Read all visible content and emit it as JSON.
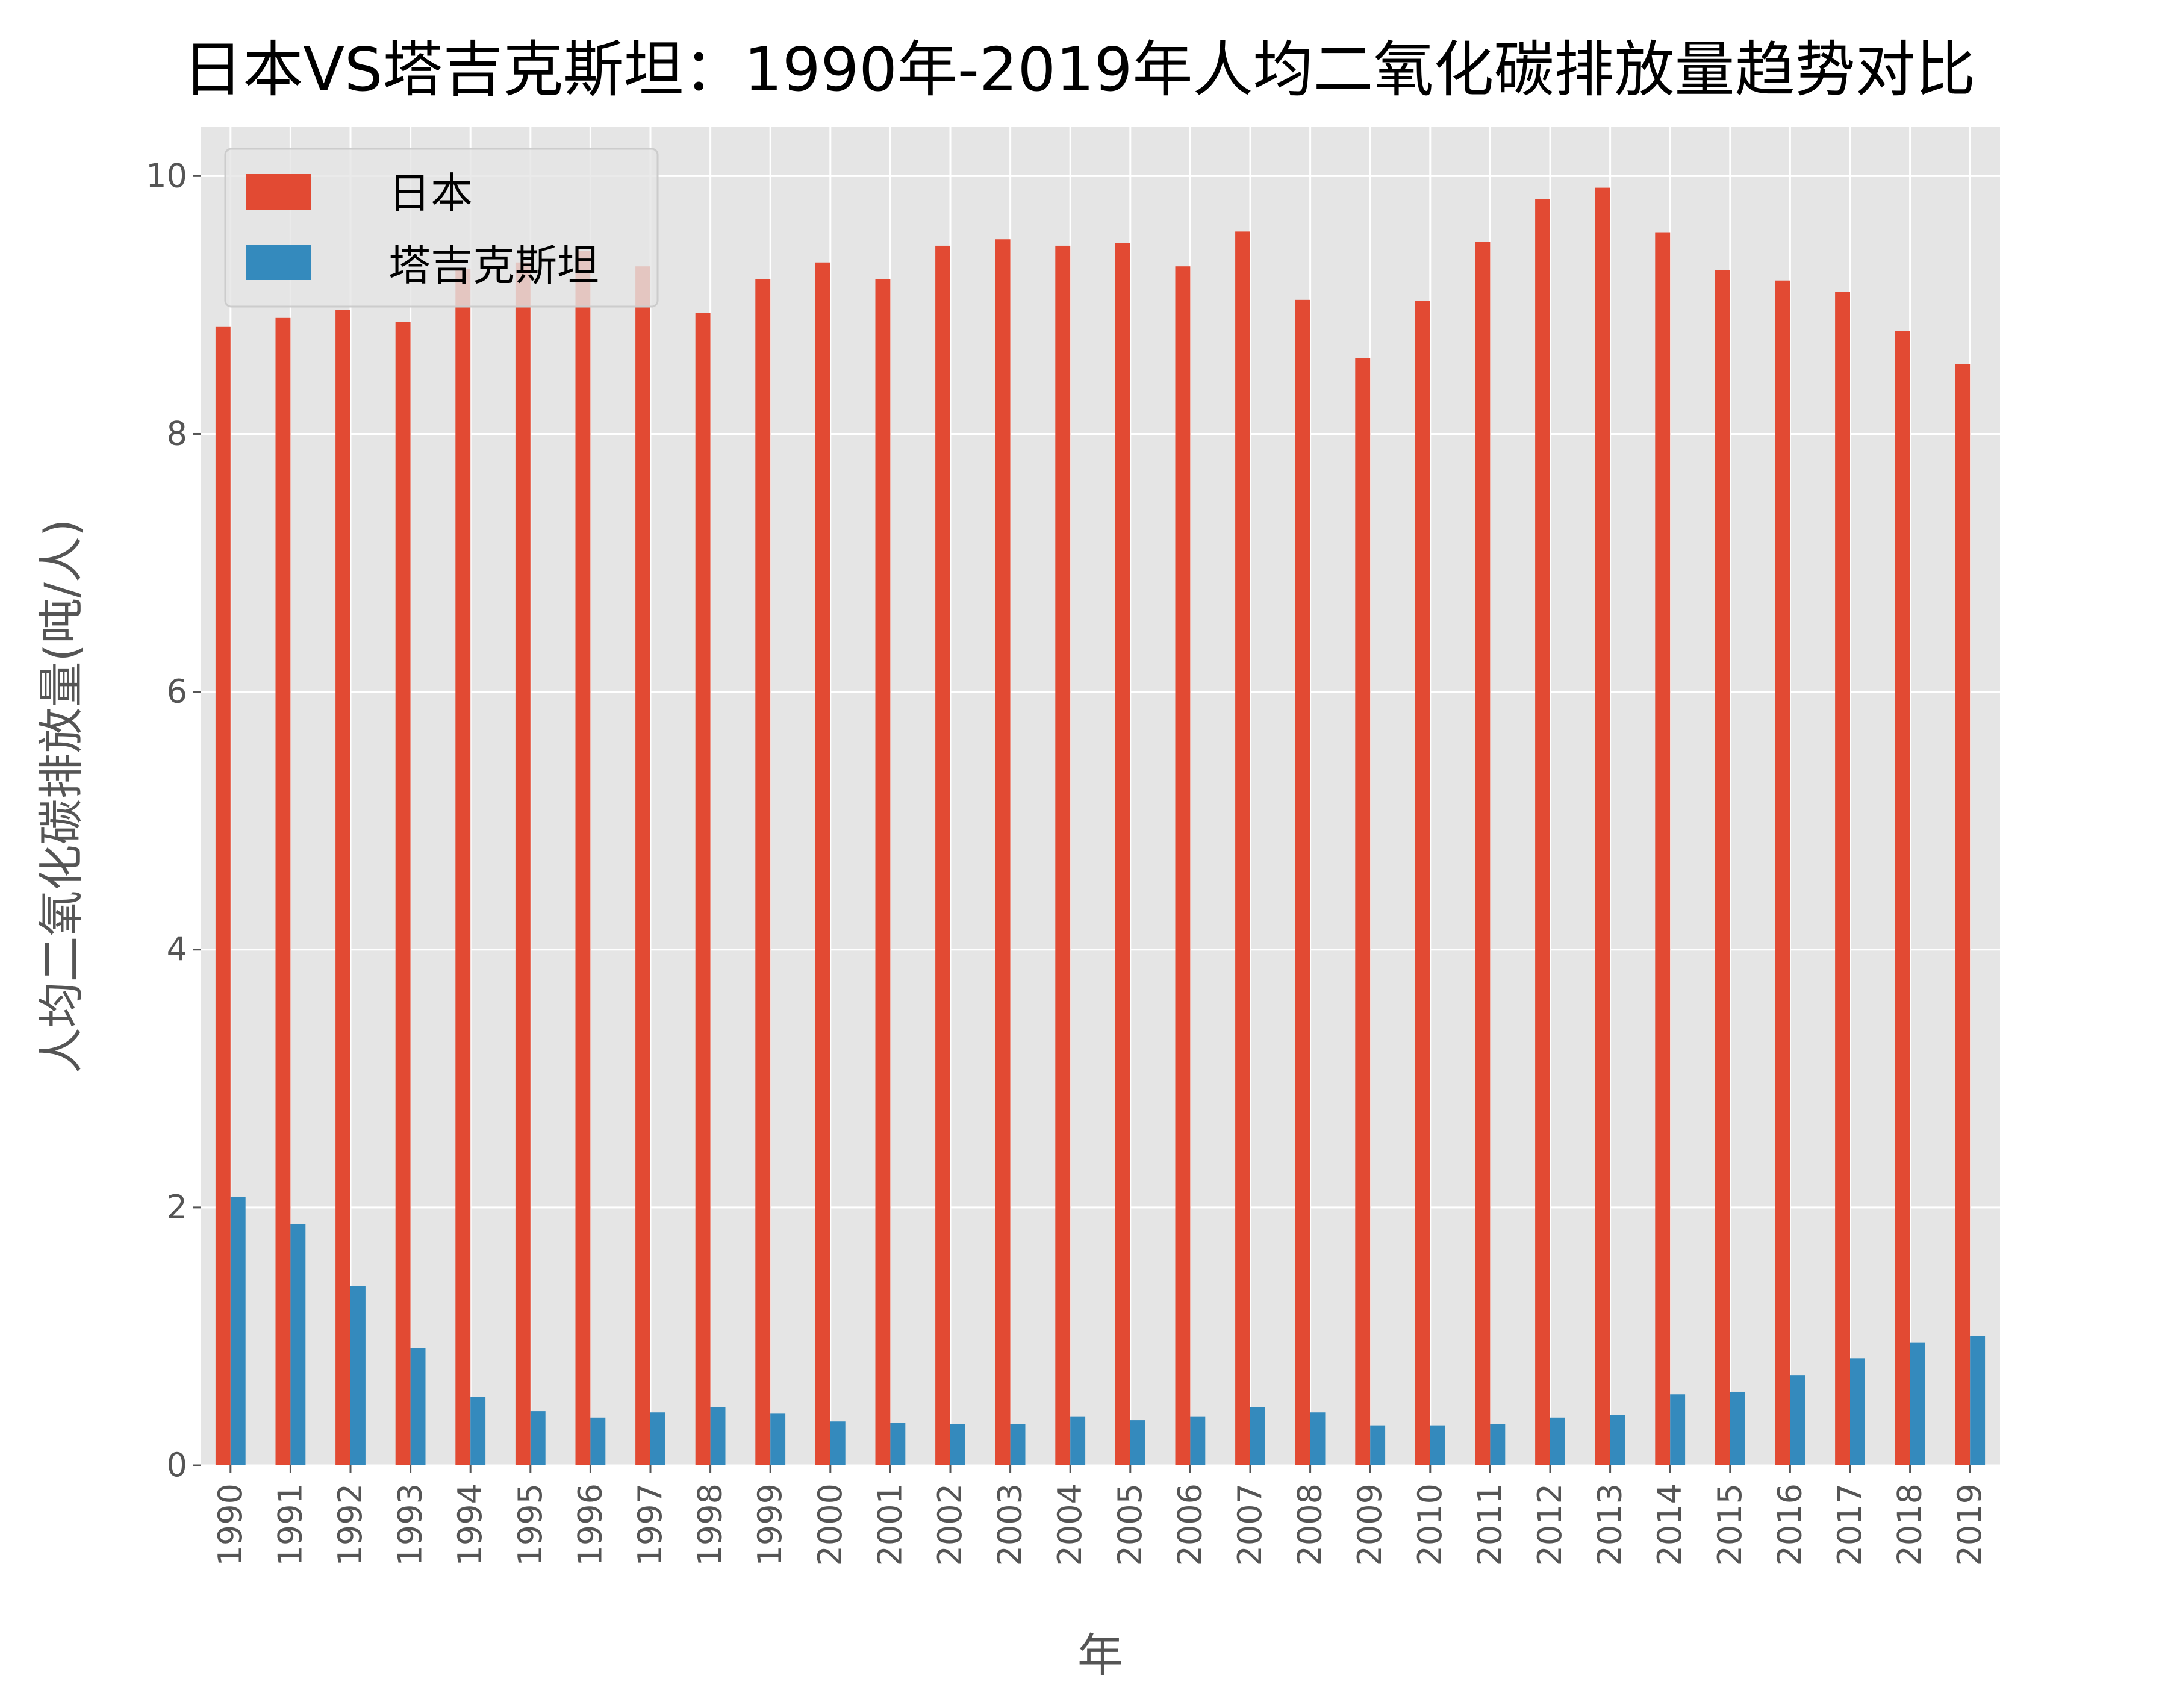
{
  "chart_data": {
    "type": "bar",
    "title": "日本VS塔吉克斯坦：1990年-2019年人均二氧化碳排放量趋势对比",
    "xlabel": "年",
    "ylabel": "人均二氧化碳排放量(吨/人)",
    "ylim": [
      0,
      10.38
    ],
    "yticks": [
      0,
      2,
      4,
      6,
      8,
      10
    ],
    "grid": true,
    "legend_position": "top-left",
    "categories": [
      "1990",
      "1991",
      "1992",
      "1993",
      "1994",
      "1995",
      "1996",
      "1997",
      "1998",
      "1999",
      "2000",
      "2001",
      "2002",
      "2003",
      "2004",
      "2005",
      "2006",
      "2007",
      "2008",
      "2009",
      "2010",
      "2011",
      "2012",
      "2013",
      "2014",
      "2015",
      "2016",
      "2017",
      "2018",
      "2019"
    ],
    "series": [
      {
        "name": "日本",
        "color": "#E24A33",
        "values": [
          8.83,
          8.9,
          8.96,
          8.87,
          9.28,
          9.33,
          9.42,
          9.3,
          8.94,
          9.2,
          9.33,
          9.2,
          9.46,
          9.51,
          9.46,
          9.48,
          9.3,
          9.57,
          9.04,
          8.59,
          9.03,
          9.49,
          9.82,
          9.91,
          9.56,
          9.27,
          9.19,
          9.1,
          8.8,
          8.54
        ]
      },
      {
        "name": "塔吉克斯坦",
        "color": "#348ABD",
        "values": [
          2.08,
          1.87,
          1.39,
          0.91,
          0.53,
          0.42,
          0.37,
          0.41,
          0.45,
          0.4,
          0.34,
          0.33,
          0.32,
          0.32,
          0.38,
          0.35,
          0.38,
          0.45,
          0.41,
          0.31,
          0.31,
          0.32,
          0.37,
          0.39,
          0.55,
          0.57,
          0.7,
          0.83,
          0.95,
          1.0
        ]
      }
    ]
  }
}
